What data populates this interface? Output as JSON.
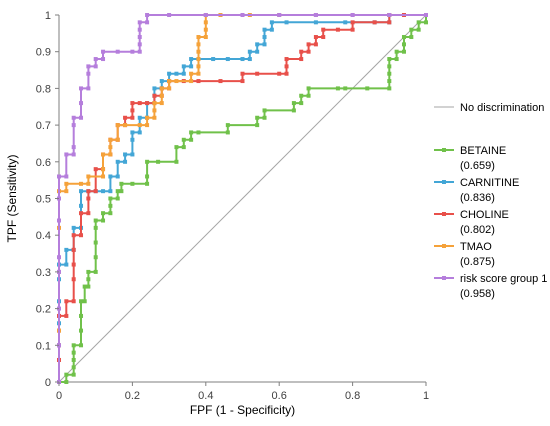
{
  "chart_data": {
    "type": "line",
    "xlabel": "FPF (1 - Specificity)",
    "ylabel": "TPF (Sensitivity)",
    "xlim": [
      0,
      1
    ],
    "ylim": [
      0,
      1
    ],
    "xticks": [
      "0",
      "0.2",
      "0.4",
      "0.6",
      "0.8",
      "1"
    ],
    "yticks": [
      "0",
      "0.1",
      "0.2",
      "0.3",
      "0.4",
      "0.5",
      "0.6",
      "0.7",
      "0.8",
      "0.9",
      "1"
    ],
    "grid": false,
    "legend_position": "right",
    "diagonal": {
      "name": "No discrimination",
      "color": "#a6a6a6",
      "points": [
        [
          0,
          0
        ],
        [
          1,
          1
        ]
      ]
    },
    "series": [
      {
        "name": "BETAINE",
        "auc": "(0.659)",
        "color": "#70c14a",
        "points": [
          [
            0,
            0
          ],
          [
            0.02,
            0
          ],
          [
            0.02,
            0.02
          ],
          [
            0.04,
            0.02
          ],
          [
            0.04,
            0.04
          ],
          [
            0.04,
            0.06
          ],
          [
            0.04,
            0.08
          ],
          [
            0.04,
            0.1
          ],
          [
            0.06,
            0.1
          ],
          [
            0.06,
            0.14
          ],
          [
            0.06,
            0.18
          ],
          [
            0.06,
            0.22
          ],
          [
            0.07,
            0.22
          ],
          [
            0.07,
            0.26
          ],
          [
            0.08,
            0.26
          ],
          [
            0.08,
            0.28
          ],
          [
            0.08,
            0.3
          ],
          [
            0.1,
            0.3
          ],
          [
            0.1,
            0.34
          ],
          [
            0.1,
            0.38
          ],
          [
            0.1,
            0.42
          ],
          [
            0.1,
            0.44
          ],
          [
            0.12,
            0.44
          ],
          [
            0.12,
            0.46
          ],
          [
            0.14,
            0.46
          ],
          [
            0.14,
            0.48
          ],
          [
            0.14,
            0.5
          ],
          [
            0.16,
            0.5
          ],
          [
            0.16,
            0.52
          ],
          [
            0.17,
            0.52
          ],
          [
            0.17,
            0.54
          ],
          [
            0.2,
            0.54
          ],
          [
            0.24,
            0.54
          ],
          [
            0.24,
            0.56
          ],
          [
            0.24,
            0.6
          ],
          [
            0.27,
            0.6
          ],
          [
            0.32,
            0.6
          ],
          [
            0.32,
            0.64
          ],
          [
            0.34,
            0.64
          ],
          [
            0.34,
            0.66
          ],
          [
            0.36,
            0.66
          ],
          [
            0.36,
            0.68
          ],
          [
            0.38,
            0.68
          ],
          [
            0.46,
            0.68
          ],
          [
            0.46,
            0.7
          ],
          [
            0.54,
            0.7
          ],
          [
            0.54,
            0.72
          ],
          [
            0.56,
            0.72
          ],
          [
            0.56,
            0.74
          ],
          [
            0.64,
            0.74
          ],
          [
            0.64,
            0.76
          ],
          [
            0.66,
            0.76
          ],
          [
            0.66,
            0.78
          ],
          [
            0.68,
            0.78
          ],
          [
            0.68,
            0.8
          ],
          [
            0.76,
            0.8
          ],
          [
            0.78,
            0.8
          ],
          [
            0.84,
            0.8
          ],
          [
            0.9,
            0.8
          ],
          [
            0.9,
            0.82
          ],
          [
            0.9,
            0.84
          ],
          [
            0.9,
            0.86
          ],
          [
            0.9,
            0.88
          ],
          [
            0.92,
            0.88
          ],
          [
            0.92,
            0.9
          ],
          [
            0.94,
            0.9
          ],
          [
            0.94,
            0.92
          ],
          [
            0.94,
            0.94
          ],
          [
            0.96,
            0.94
          ],
          [
            0.96,
            0.96
          ],
          [
            0.98,
            0.96
          ],
          [
            0.98,
            0.98
          ],
          [
            1,
            0.98
          ],
          [
            1,
            1
          ]
        ]
      },
      {
        "name": "CARNITINE",
        "auc": "(0.836)",
        "color": "#43a6d6",
        "points": [
          [
            0,
            0
          ],
          [
            0,
            0.06
          ],
          [
            0,
            0.1
          ],
          [
            0,
            0.16
          ],
          [
            0,
            0.22
          ],
          [
            0,
            0.28
          ],
          [
            0,
            0.32
          ],
          [
            0.02,
            0.32
          ],
          [
            0.02,
            0.36
          ],
          [
            0.04,
            0.36
          ],
          [
            0.04,
            0.42
          ],
          [
            0.06,
            0.42
          ],
          [
            0.06,
            0.48
          ],
          [
            0.06,
            0.52
          ],
          [
            0.08,
            0.52
          ],
          [
            0.1,
            0.52
          ],
          [
            0.12,
            0.52
          ],
          [
            0.14,
            0.52
          ],
          [
            0.14,
            0.56
          ],
          [
            0.16,
            0.56
          ],
          [
            0.16,
            0.6
          ],
          [
            0.18,
            0.6
          ],
          [
            0.18,
            0.62
          ],
          [
            0.2,
            0.62
          ],
          [
            0.2,
            0.66
          ],
          [
            0.2,
            0.68
          ],
          [
            0.22,
            0.68
          ],
          [
            0.22,
            0.72
          ],
          [
            0.24,
            0.72
          ],
          [
            0.24,
            0.76
          ],
          [
            0.26,
            0.76
          ],
          [
            0.26,
            0.78
          ],
          [
            0.26,
            0.8
          ],
          [
            0.28,
            0.8
          ],
          [
            0.28,
            0.82
          ],
          [
            0.3,
            0.82
          ],
          [
            0.3,
            0.84
          ],
          [
            0.32,
            0.84
          ],
          [
            0.34,
            0.84
          ],
          [
            0.34,
            0.86
          ],
          [
            0.36,
            0.86
          ],
          [
            0.36,
            0.88
          ],
          [
            0.38,
            0.88
          ],
          [
            0.42,
            0.88
          ],
          [
            0.46,
            0.88
          ],
          [
            0.5,
            0.88
          ],
          [
            0.52,
            0.88
          ],
          [
            0.52,
            0.9
          ],
          [
            0.54,
            0.9
          ],
          [
            0.54,
            0.92
          ],
          [
            0.56,
            0.92
          ],
          [
            0.56,
            0.94
          ],
          [
            0.56,
            0.96
          ],
          [
            0.58,
            0.96
          ],
          [
            0.58,
            0.98
          ],
          [
            0.62,
            0.98
          ],
          [
            0.7,
            0.98
          ],
          [
            0.78,
            0.98
          ],
          [
            0.86,
            0.98
          ],
          [
            0.9,
            0.98
          ],
          [
            0.9,
            1
          ],
          [
            0.94,
            1
          ],
          [
            1,
            1
          ]
        ]
      },
      {
        "name": "CHOLINE",
        "auc": "(0.802)",
        "color": "#e8504a",
        "points": [
          [
            0,
            0
          ],
          [
            0,
            0.06
          ],
          [
            0,
            0.1
          ],
          [
            0,
            0.14
          ],
          [
            0,
            0.18
          ],
          [
            0.02,
            0.18
          ],
          [
            0.02,
            0.22
          ],
          [
            0.04,
            0.22
          ],
          [
            0.04,
            0.28
          ],
          [
            0.04,
            0.32
          ],
          [
            0.04,
            0.36
          ],
          [
            0.04,
            0.4
          ],
          [
            0.06,
            0.4
          ],
          [
            0.06,
            0.46
          ],
          [
            0.08,
            0.46
          ],
          [
            0.08,
            0.5
          ],
          [
            0.08,
            0.52
          ],
          [
            0.1,
            0.52
          ],
          [
            0.1,
            0.58
          ],
          [
            0.12,
            0.58
          ],
          [
            0.12,
            0.62
          ],
          [
            0.14,
            0.62
          ],
          [
            0.14,
            0.66
          ],
          [
            0.16,
            0.66
          ],
          [
            0.16,
            0.7
          ],
          [
            0.18,
            0.7
          ],
          [
            0.18,
            0.72
          ],
          [
            0.2,
            0.72
          ],
          [
            0.2,
            0.74
          ],
          [
            0.2,
            0.76
          ],
          [
            0.22,
            0.76
          ],
          [
            0.24,
            0.76
          ],
          [
            0.26,
            0.76
          ],
          [
            0.26,
            0.78
          ],
          [
            0.28,
            0.78
          ],
          [
            0.28,
            0.8
          ],
          [
            0.3,
            0.8
          ],
          [
            0.3,
            0.82
          ],
          [
            0.34,
            0.82
          ],
          [
            0.38,
            0.82
          ],
          [
            0.44,
            0.82
          ],
          [
            0.5,
            0.82
          ],
          [
            0.5,
            0.84
          ],
          [
            0.54,
            0.84
          ],
          [
            0.6,
            0.84
          ],
          [
            0.62,
            0.84
          ],
          [
            0.62,
            0.86
          ],
          [
            0.62,
            0.88
          ],
          [
            0.66,
            0.88
          ],
          [
            0.66,
            0.9
          ],
          [
            0.68,
            0.9
          ],
          [
            0.68,
            0.92
          ],
          [
            0.7,
            0.92
          ],
          [
            0.7,
            0.94
          ],
          [
            0.72,
            0.94
          ],
          [
            0.72,
            0.96
          ],
          [
            0.76,
            0.96
          ],
          [
            0.8,
            0.96
          ],
          [
            0.8,
            0.98
          ],
          [
            0.86,
            0.98
          ],
          [
            0.9,
            0.98
          ],
          [
            0.9,
            1
          ],
          [
            0.94,
            1
          ],
          [
            1,
            1
          ]
        ]
      },
      {
        "name": "TMAO",
        "auc": "(0.875)",
        "color": "#f5a23a",
        "points": [
          [
            0,
            0
          ],
          [
            0,
            0.14
          ],
          [
            0,
            0.3
          ],
          [
            0,
            0.42
          ],
          [
            0,
            0.52
          ],
          [
            0.02,
            0.52
          ],
          [
            0.02,
            0.54
          ],
          [
            0.06,
            0.54
          ],
          [
            0.08,
            0.54
          ],
          [
            0.08,
            0.56
          ],
          [
            0.12,
            0.56
          ],
          [
            0.12,
            0.58
          ],
          [
            0.12,
            0.62
          ],
          [
            0.14,
            0.62
          ],
          [
            0.14,
            0.64
          ],
          [
            0.14,
            0.66
          ],
          [
            0.16,
            0.66
          ],
          [
            0.16,
            0.7
          ],
          [
            0.18,
            0.7
          ],
          [
            0.22,
            0.7
          ],
          [
            0.24,
            0.7
          ],
          [
            0.24,
            0.72
          ],
          [
            0.26,
            0.72
          ],
          [
            0.26,
            0.74
          ],
          [
            0.26,
            0.76
          ],
          [
            0.28,
            0.76
          ],
          [
            0.28,
            0.78
          ],
          [
            0.28,
            0.8
          ],
          [
            0.3,
            0.8
          ],
          [
            0.3,
            0.82
          ],
          [
            0.32,
            0.82
          ],
          [
            0.36,
            0.82
          ],
          [
            0.36,
            0.84
          ],
          [
            0.38,
            0.84
          ],
          [
            0.38,
            0.86
          ],
          [
            0.38,
            0.88
          ],
          [
            0.38,
            0.9
          ],
          [
            0.38,
            0.92
          ],
          [
            0.38,
            0.94
          ],
          [
            0.4,
            0.94
          ],
          [
            0.4,
            0.96
          ],
          [
            0.4,
            0.98
          ],
          [
            0.4,
            1
          ],
          [
            0.44,
            1
          ],
          [
            0.52,
            1
          ],
          [
            0.6,
            1
          ],
          [
            0.7,
            1
          ],
          [
            0.8,
            1
          ],
          [
            0.9,
            1
          ],
          [
            1,
            1
          ]
        ]
      },
      {
        "name": "risk score group 1",
        "auc": "(0.958)",
        "color": "#b57edc",
        "points": [
          [
            0,
            0
          ],
          [
            0,
            0.1
          ],
          [
            0,
            0.2
          ],
          [
            0,
            0.3
          ],
          [
            0,
            0.34
          ],
          [
            0,
            0.44
          ],
          [
            0,
            0.5
          ],
          [
            0,
            0.56
          ],
          [
            0.02,
            0.56
          ],
          [
            0.02,
            0.62
          ],
          [
            0.04,
            0.62
          ],
          [
            0.04,
            0.64
          ],
          [
            0.04,
            0.7
          ],
          [
            0.04,
            0.72
          ],
          [
            0.06,
            0.72
          ],
          [
            0.06,
            0.76
          ],
          [
            0.06,
            0.8
          ],
          [
            0.08,
            0.8
          ],
          [
            0.08,
            0.84
          ],
          [
            0.08,
            0.86
          ],
          [
            0.1,
            0.86
          ],
          [
            0.1,
            0.88
          ],
          [
            0.12,
            0.88
          ],
          [
            0.12,
            0.9
          ],
          [
            0.16,
            0.9
          ],
          [
            0.2,
            0.9
          ],
          [
            0.22,
            0.9
          ],
          [
            0.22,
            0.92
          ],
          [
            0.22,
            0.94
          ],
          [
            0.22,
            0.96
          ],
          [
            0.22,
            0.98
          ],
          [
            0.24,
            0.98
          ],
          [
            0.24,
            1
          ],
          [
            0.3,
            1
          ],
          [
            0.4,
            1
          ],
          [
            0.5,
            1
          ],
          [
            0.6,
            1
          ],
          [
            0.7,
            1
          ],
          [
            0.8,
            1
          ],
          [
            0.9,
            1
          ],
          [
            1,
            1
          ]
        ]
      }
    ]
  }
}
